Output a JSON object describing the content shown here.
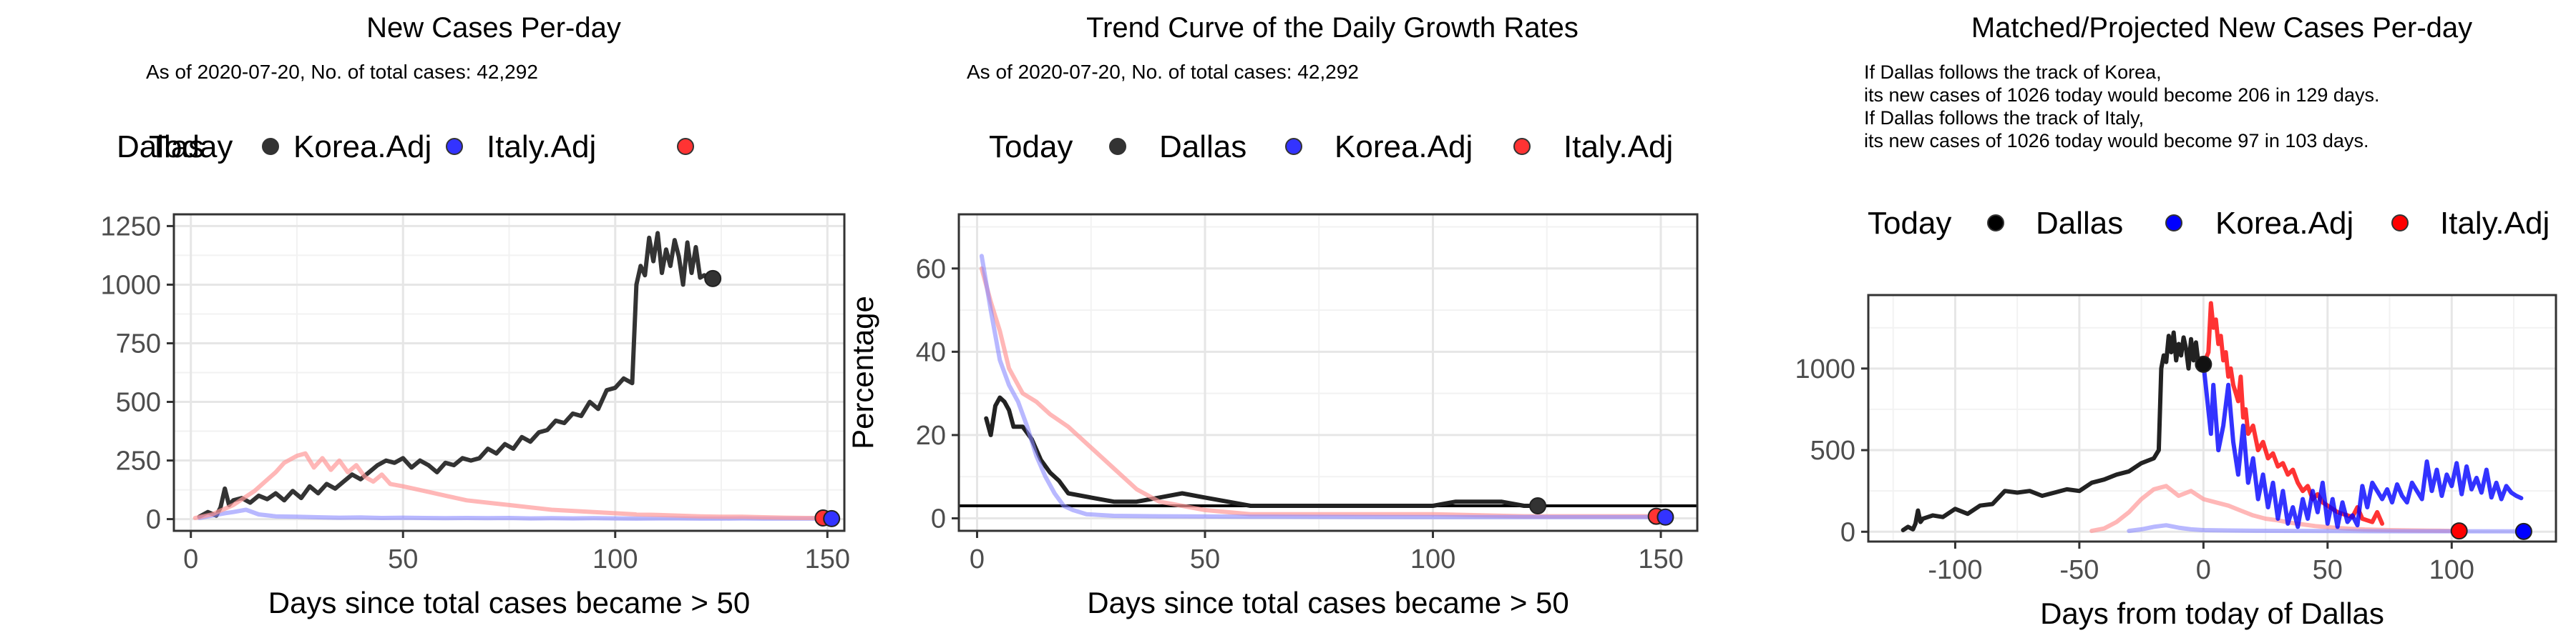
{
  "chart_data": [
    {
      "type": "line",
      "title": "New Cases Per-day",
      "subtitle": "As of 2020-07-20, No. of total cases: 42,292",
      "legend": {
        "title": "Today",
        "placement": "top",
        "entries": [
          {
            "label": "Dallas",
            "color": "#333333"
          },
          {
            "label": "Korea.Adj",
            "color": "#3333FF"
          },
          {
            "label": "Italy.Adj",
            "color": "#FF3333"
          }
        ]
      },
      "xlabel": "Days since total cases became > 50",
      "ylabel": "",
      "xlim": [
        -4,
        154
      ],
      "ylim": [
        -50,
        1300
      ],
      "xticks": [
        0,
        50,
        100,
        150
      ],
      "yticks": [
        0,
        250,
        500,
        750,
        1000,
        1250
      ],
      "grid": true,
      "series": [
        {
          "name": "Dallas",
          "color": "#333333",
          "width": 6,
          "opacity": 1,
          "x": [
            2,
            4,
            6,
            7,
            8,
            9,
            10,
            12,
            14,
            16,
            18,
            20,
            22,
            24,
            26,
            28,
            30,
            32,
            34,
            36,
            38,
            40,
            42,
            44,
            46,
            48,
            50,
            52,
            54,
            56,
            58,
            60,
            62,
            64,
            66,
            68,
            70,
            72,
            74,
            76,
            78,
            80,
            82,
            84,
            86,
            88,
            90,
            92,
            94,
            96,
            98,
            100,
            102,
            104,
            105,
            106,
            107,
            108,
            109,
            110,
            111,
            112,
            113,
            114,
            115,
            116,
            117,
            118,
            119,
            120,
            121,
            122,
            123
          ],
          "y": [
            10,
            30,
            15,
            50,
            130,
            60,
            80,
            90,
            70,
            100,
            85,
            110,
            80,
            120,
            90,
            140,
            110,
            150,
            130,
            160,
            190,
            170,
            200,
            230,
            250,
            240,
            260,
            220,
            250,
            230,
            200,
            240,
            230,
            260,
            250,
            260,
            300,
            280,
            320,
            300,
            350,
            330,
            370,
            380,
            420,
            410,
            450,
            440,
            500,
            470,
            550,
            560,
            600,
            580,
            1000,
            1080,
            1040,
            1200,
            1100,
            1220,
            1050,
            1150,
            1080,
            1190,
            1120,
            1000,
            1180,
            1050,
            1160,
            1030,
            1040,
            1020,
            1030
          ]
        },
        {
          "name": "Korea.Adj",
          "color": "#8888FF",
          "width": 6,
          "opacity": 0.6,
          "x": [
            2,
            5,
            8,
            10,
            13,
            16,
            20,
            25,
            30,
            35,
            40,
            45,
            50,
            55,
            60,
            65,
            70,
            75,
            80,
            85,
            90,
            95,
            100,
            105,
            110,
            115,
            120,
            125,
            130,
            135,
            140,
            145,
            151
          ],
          "y": [
            5,
            15,
            25,
            30,
            40,
            20,
            12,
            10,
            8,
            6,
            7,
            5,
            6,
            5,
            4,
            5,
            4,
            5,
            3,
            4,
            3,
            4,
            3,
            2,
            3,
            3,
            2,
            2,
            3,
            2,
            2,
            2,
            2
          ]
        },
        {
          "name": "Italy.Adj",
          "color": "#FF9999",
          "width": 6,
          "opacity": 0.7,
          "x": [
            1,
            5,
            10,
            15,
            20,
            22,
            25,
            27,
            29,
            31,
            33,
            35,
            37,
            39,
            41,
            43,
            45,
            47,
            50,
            55,
            60,
            65,
            70,
            75,
            80,
            85,
            90,
            95,
            100,
            105,
            110,
            115,
            120,
            125,
            130,
            135,
            140,
            145,
            149
          ],
          "y": [
            5,
            20,
            60,
            120,
            200,
            240,
            270,
            280,
            220,
            260,
            210,
            250,
            200,
            230,
            180,
            160,
            190,
            150,
            140,
            120,
            100,
            80,
            70,
            60,
            50,
            40,
            35,
            30,
            25,
            20,
            18,
            15,
            12,
            10,
            10,
            8,
            6,
            5,
            5
          ]
        }
      ],
      "end_points": [
        {
          "series": "Dallas",
          "x": 123,
          "y": 1026,
          "color": "#333333"
        },
        {
          "series": "Italy.Adj",
          "x": 149,
          "y": 5,
          "color": "#FF3333"
        },
        {
          "series": "Korea.Adj",
          "x": 151,
          "y": 2,
          "color": "#3333FF"
        }
      ]
    },
    {
      "type": "line",
      "title": "Trend Curve of the Daily Growth Rates",
      "subtitle": "As of 2020-07-20, No. of total cases: 42,292",
      "legend": {
        "title": "Today",
        "placement": "top",
        "entries": [
          {
            "label": "Dallas",
            "color": "#333333"
          },
          {
            "label": "Korea.Adj",
            "color": "#3333FF"
          },
          {
            "label": "Italy.Adj",
            "color": "#FF3333"
          }
        ]
      },
      "xlabel": "Days since total cases became > 50",
      "ylabel": "Percentage",
      "xlim": [
        -4,
        158
      ],
      "ylim": [
        -3,
        73
      ],
      "xticks": [
        0,
        50,
        100,
        150
      ],
      "yticks": [
        0,
        20,
        40,
        60
      ],
      "grid": true,
      "hline": 3,
      "series": [
        {
          "name": "Dallas",
          "color": "#222222",
          "width": 6,
          "opacity": 1,
          "x": [
            2,
            3,
            4,
            5,
            6,
            7,
            8,
            10,
            12,
            14,
            16,
            18,
            20,
            25,
            30,
            35,
            40,
            45,
            50,
            55,
            60,
            70,
            80,
            90,
            100,
            105,
            110,
            115,
            120,
            123
          ],
          "y": [
            24,
            20,
            27,
            29,
            28,
            26,
            22,
            22,
            19,
            14,
            11,
            9,
            6,
            5,
            4,
            4,
            5,
            6,
            5,
            4,
            3,
            3,
            3,
            3,
            3,
            4,
            4,
            4,
            3,
            3
          ]
        },
        {
          "name": "Italy.Adj",
          "color": "#FF9999",
          "width": 6,
          "opacity": 0.7,
          "x": [
            1,
            3,
            5,
            7,
            10,
            13,
            16,
            20,
            25,
            30,
            35,
            40,
            45,
            50,
            60,
            70,
            80,
            100,
            120,
            149
          ],
          "y": [
            60,
            52,
            45,
            36,
            30,
            28,
            25,
            22,
            17,
            12,
            7,
            4,
            3,
            2,
            1,
            1,
            1,
            1,
            0.5,
            0.5
          ]
        },
        {
          "name": "Korea.Adj",
          "color": "#8888FF",
          "width": 6,
          "opacity": 0.6,
          "x": [
            1,
            3,
            5,
            7,
            9,
            11,
            13,
            15,
            17,
            19,
            21,
            24,
            27,
            30,
            40,
            60,
            100,
            151
          ],
          "y": [
            63,
            50,
            38,
            32,
            28,
            22,
            15,
            10,
            6,
            3,
            2,
            1,
            0.8,
            0.6,
            0.5,
            0.4,
            0.3,
            0.3
          ]
        }
      ],
      "end_points": [
        {
          "series": "Dallas",
          "x": 123,
          "y": 3,
          "color": "#333333"
        },
        {
          "series": "Italy.Adj",
          "x": 149,
          "y": 0.5,
          "color": "#FF3333"
        },
        {
          "series": "Korea.Adj",
          "x": 151,
          "y": 0.3,
          "color": "#3333FF"
        }
      ]
    },
    {
      "type": "line",
      "title": "Matched/Projected New Cases Per-day",
      "subtitle": "",
      "annotation_lines": [
        "If Dallas follows the track of Korea,",
        "its new cases of 1026 today would become 206 in 129 days.",
        "If Dallas follows the track of Italy,",
        "its new cases of 1026 today would become 97 in 103 days."
      ],
      "legend": {
        "title": "Today",
        "placement": "top",
        "entries": [
          {
            "label": "Dallas",
            "color": "#000000"
          },
          {
            "label": "Korea.Adj",
            "color": "#0000FF"
          },
          {
            "label": "Italy.Adj",
            "color": "#FF0000"
          }
        ]
      },
      "xlabel": "Days from today of Dallas",
      "ylabel": "",
      "xlim": [
        -135,
        142
      ],
      "ylim": [
        -60,
        1450
      ],
      "xticks": [
        -100,
        -50,
        0,
        50,
        100
      ],
      "yticks": [
        0,
        500,
        1000
      ],
      "grid": true,
      "series": [
        {
          "name": "Dallas",
          "color": "#222222",
          "width": 6,
          "opacity": 1,
          "x": [
            -121,
            -119,
            -117,
            -116,
            -115,
            -114,
            -113,
            -111,
            -109,
            -105,
            -100,
            -95,
            -90,
            -85,
            -80,
            -75,
            -70,
            -65,
            -60,
            -55,
            -50,
            -45,
            -40,
            -35,
            -30,
            -25,
            -20,
            -18,
            -17,
            -16,
            -15,
            -14,
            -13,
            -12,
            -11,
            -10,
            -9,
            -8,
            -7,
            -6,
            -5,
            -4,
            -3,
            -2,
            -1,
            0
          ],
          "y": [
            10,
            30,
            15,
            50,
            130,
            60,
            80,
            90,
            100,
            90,
            140,
            110,
            160,
            170,
            250,
            240,
            250,
            220,
            240,
            260,
            250,
            300,
            320,
            350,
            370,
            420,
            450,
            500,
            1000,
            1080,
            1040,
            1200,
            1100,
            1220,
            1050,
            1150,
            1080,
            1190,
            1120,
            1000,
            1180,
            1050,
            1160,
            1030,
            1040,
            1026
          ]
        },
        {
          "name": "Italy.Adj.past",
          "color": "#FF9999",
          "width": 6,
          "opacity": 0.7,
          "x": [
            -45,
            -40,
            -35,
            -30,
            -25,
            -20,
            -15,
            -10,
            -5,
            0,
            5,
            10,
            15,
            20,
            25,
            30,
            35,
            40,
            45,
            50,
            55,
            60,
            65,
            70,
            75,
            80,
            85,
            90,
            95,
            100,
            103
          ],
          "y": [
            5,
            20,
            60,
            120,
            200,
            260,
            280,
            220,
            250,
            200,
            180,
            160,
            130,
            100,
            80,
            70,
            55,
            45,
            35,
            28,
            22,
            18,
            14,
            12,
            10,
            9,
            8,
            7,
            6,
            5,
            5
          ]
        },
        {
          "name": "Korea.Adj.past",
          "color": "#8888FF",
          "width": 6,
          "opacity": 0.6,
          "x": [
            -30,
            -25,
            -20,
            -15,
            -10,
            -5,
            0,
            10,
            20,
            40,
            60,
            80,
            100,
            129
          ],
          "y": [
            5,
            15,
            30,
            40,
            25,
            15,
            10,
            8,
            6,
            5,
            4,
            3,
            3,
            2
          ]
        },
        {
          "name": "Italy.Adj",
          "color": "#FF0000",
          "width": 6,
          "opacity": 0.8,
          "x": [
            0,
            2,
            3,
            4,
            5,
            6,
            7,
            8,
            9,
            10,
            11,
            12,
            13,
            14,
            15,
            16,
            17,
            18,
            20,
            22,
            24,
            26,
            28,
            30,
            32,
            34,
            36,
            38,
            40,
            42,
            44,
            46,
            48,
            50,
            52,
            54,
            56,
            58,
            60,
            62,
            64,
            66,
            68,
            70,
            72
          ],
          "y": [
            1026,
            1100,
            1400,
            1250,
            1300,
            1150,
            1200,
            1050,
            1100,
            950,
            1000,
            900,
            850,
            800,
            950,
            700,
            750,
            600,
            650,
            500,
            550,
            450,
            480,
            400,
            420,
            350,
            380,
            300,
            250,
            280,
            200,
            230,
            180,
            160,
            140,
            120,
            110,
            100,
            90,
            150,
            80,
            70,
            60,
            120,
            50
          ]
        },
        {
          "name": "Korea.Adj",
          "color": "#0000FF",
          "width": 6,
          "opacity": 0.8,
          "x": [
            0,
            0,
            3,
            4,
            6,
            8,
            10,
            12,
            14,
            16,
            18,
            20,
            22,
            24,
            26,
            28,
            30,
            32,
            34,
            36,
            38,
            40,
            42,
            44,
            46,
            48,
            50,
            52,
            54,
            56,
            58,
            60,
            62,
            64,
            66,
            68,
            70,
            72,
            74,
            76,
            78,
            80,
            82,
            84,
            86,
            88,
            90,
            92,
            94,
            96,
            98,
            100,
            102,
            104,
            106,
            108,
            110,
            112,
            114,
            116,
            118,
            120,
            122,
            124,
            126,
            128
          ],
          "y": [
            1026,
            1026,
            600,
            900,
            500,
            650,
            900,
            550,
            350,
            650,
            300,
            450,
            200,
            350,
            150,
            300,
            80,
            250,
            50,
            150,
            30,
            200,
            80,
            250,
            120,
            300,
            50,
            200,
            30,
            180,
            60,
            100,
            40,
            280,
            150,
            300,
            250,
            200,
            260,
            180,
            290,
            220,
            180,
            300,
            250,
            200,
            430,
            250,
            380,
            220,
            350,
            280,
            420,
            230,
            400,
            260,
            330,
            240,
            380,
            210,
            300,
            200,
            280,
            240,
            220,
            206
          ]
        }
      ],
      "end_points": [
        {
          "series": "Dallas",
          "x": 0,
          "y": 1026,
          "color": "#111111"
        },
        {
          "series": "Italy.Adj",
          "x": 103,
          "y": 5,
          "color": "#FF0000"
        },
        {
          "series": "Korea.Adj",
          "x": 129,
          "y": 2,
          "color": "#0000FF"
        }
      ]
    }
  ]
}
